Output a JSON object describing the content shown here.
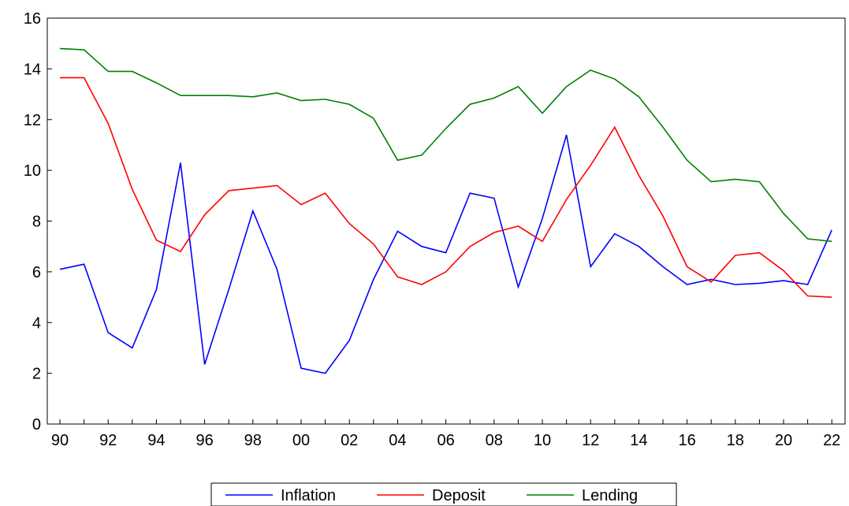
{
  "chart_data": {
    "type": "line",
    "title": "",
    "xlabel": "",
    "ylabel": "",
    "x": [
      1990,
      1991,
      1992,
      1993,
      1994,
      1995,
      1996,
      1997,
      1998,
      1999,
      2000,
      2001,
      2002,
      2003,
      2004,
      2005,
      2006,
      2007,
      2008,
      2009,
      2010,
      2011,
      2012,
      2013,
      2014,
      2015,
      2016,
      2017,
      2018,
      2019,
      2020,
      2021,
      2022
    ],
    "x_tick_labels": [
      "90",
      "92",
      "94",
      "96",
      "98",
      "00",
      "02",
      "04",
      "06",
      "08",
      "10",
      "12",
      "14",
      "16",
      "18",
      "20",
      "22"
    ],
    "y_tick_labels": [
      "0",
      "2",
      "4",
      "6",
      "8",
      "10",
      "12",
      "14",
      "16"
    ],
    "ylim": [
      0,
      16
    ],
    "grid": false,
    "legend_position": "bottom-center",
    "series": [
      {
        "name": "Inflation",
        "color": "#0000ff",
        "values": [
          6.1,
          6.3,
          3.6,
          3.0,
          5.3,
          10.3,
          2.35,
          5.3,
          8.4,
          6.1,
          2.2,
          2.0,
          3.3,
          5.7,
          7.6,
          7.0,
          6.75,
          9.1,
          8.9,
          5.4,
          8.1,
          11.4,
          6.2,
          7.5,
          7.0,
          6.2,
          5.5,
          5.7,
          5.5,
          5.55,
          5.65,
          5.5,
          7.65
        ]
      },
      {
        "name": "Deposit",
        "color": "#ff0000",
        "values": [
          13.65,
          13.65,
          11.85,
          9.25,
          7.25,
          6.8,
          8.25,
          9.2,
          9.3,
          9.4,
          8.65,
          9.1,
          7.9,
          7.1,
          5.8,
          5.5,
          6.0,
          7.0,
          7.55,
          7.8,
          7.2,
          8.85,
          10.2,
          11.7,
          9.8,
          8.2,
          6.2,
          5.6,
          6.65,
          6.75,
          6.05,
          5.05,
          5.0
        ]
      },
      {
        "name": "Lending",
        "color": "#008000",
        "values": [
          14.8,
          14.75,
          13.9,
          13.9,
          13.45,
          12.95,
          12.95,
          12.95,
          12.9,
          13.05,
          12.75,
          12.8,
          12.6,
          12.05,
          10.4,
          10.6,
          11.65,
          12.6,
          12.85,
          13.3,
          12.25,
          13.3,
          13.95,
          13.6,
          12.9,
          11.7,
          10.4,
          9.55,
          9.65,
          9.55,
          8.3,
          7.3,
          7.2
        ]
      }
    ]
  }
}
